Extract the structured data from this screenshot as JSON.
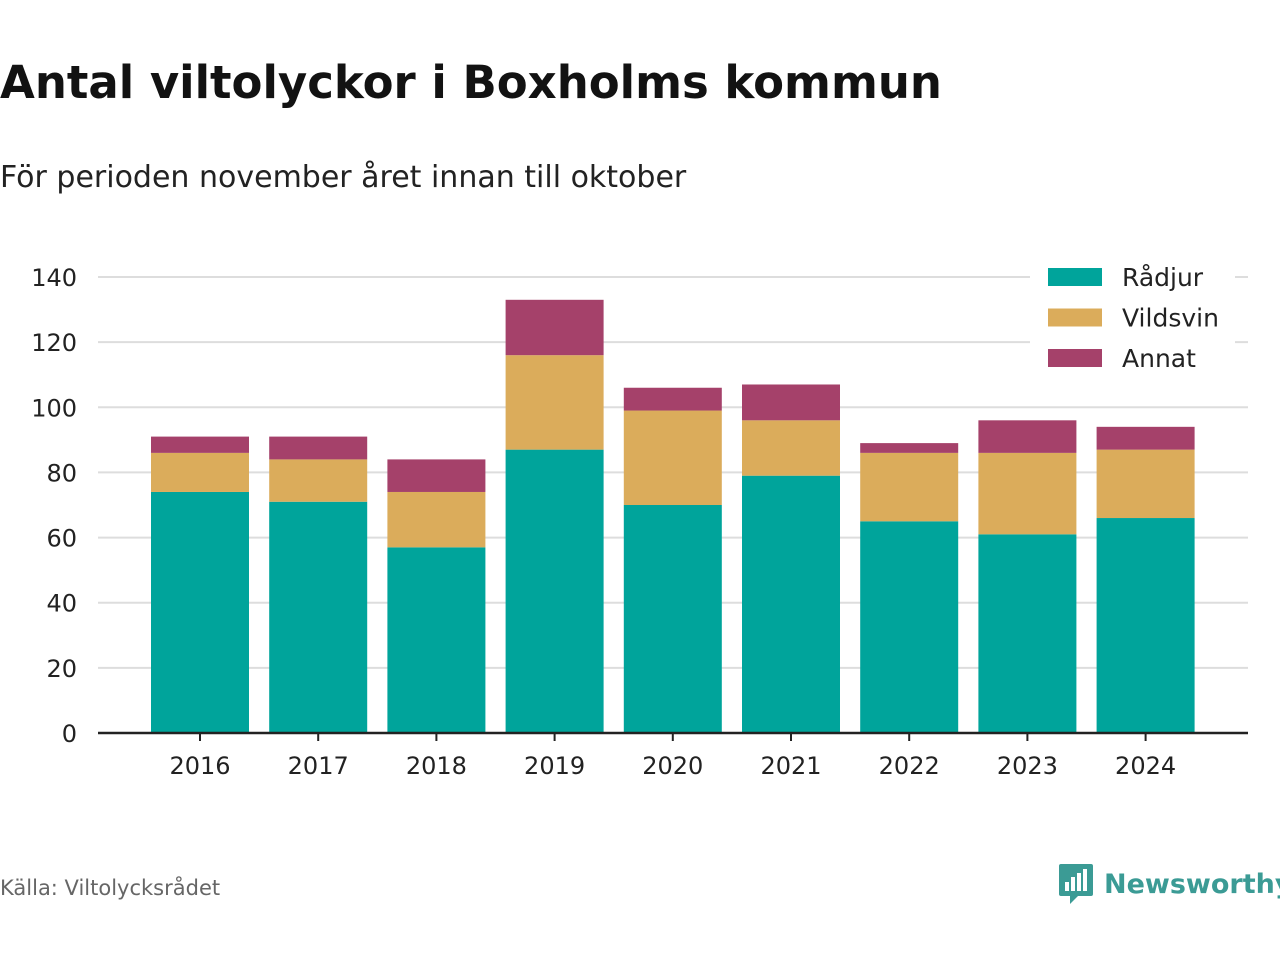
{
  "title": "Antal viltolyckor i Boxholms kommun",
  "subtitle": "För perioden november året innan till oktober",
  "source": "Källa: Viltolycksrådet",
  "brand": "Newsworthy",
  "colors": {
    "Rådjur": "#00a49b",
    "Vildsvin": "#dbac5b",
    "Annat": "#a5416a",
    "grid": "#dddddd",
    "axis": "#222222",
    "brand": "#3b9b95"
  },
  "chart_data": {
    "type": "bar",
    "stacked": true,
    "categories": [
      "2016",
      "2017",
      "2018",
      "2019",
      "2020",
      "2021",
      "2022",
      "2023",
      "2024"
    ],
    "series": [
      {
        "name": "Rådjur",
        "values": [
          74,
          71,
          57,
          87,
          70,
          79,
          65,
          61,
          66
        ]
      },
      {
        "name": "Vildsvin",
        "values": [
          12,
          13,
          17,
          29,
          29,
          17,
          21,
          25,
          21
        ]
      },
      {
        "name": "Annat",
        "values": [
          5,
          7,
          10,
          17,
          7,
          11,
          3,
          10,
          7
        ]
      }
    ],
    "ylim": [
      0,
      140
    ],
    "yticks": [
      0,
      20,
      40,
      60,
      80,
      100,
      120,
      140
    ],
    "xlabel": "",
    "ylabel": "",
    "grid": true,
    "legend": "top-right"
  }
}
